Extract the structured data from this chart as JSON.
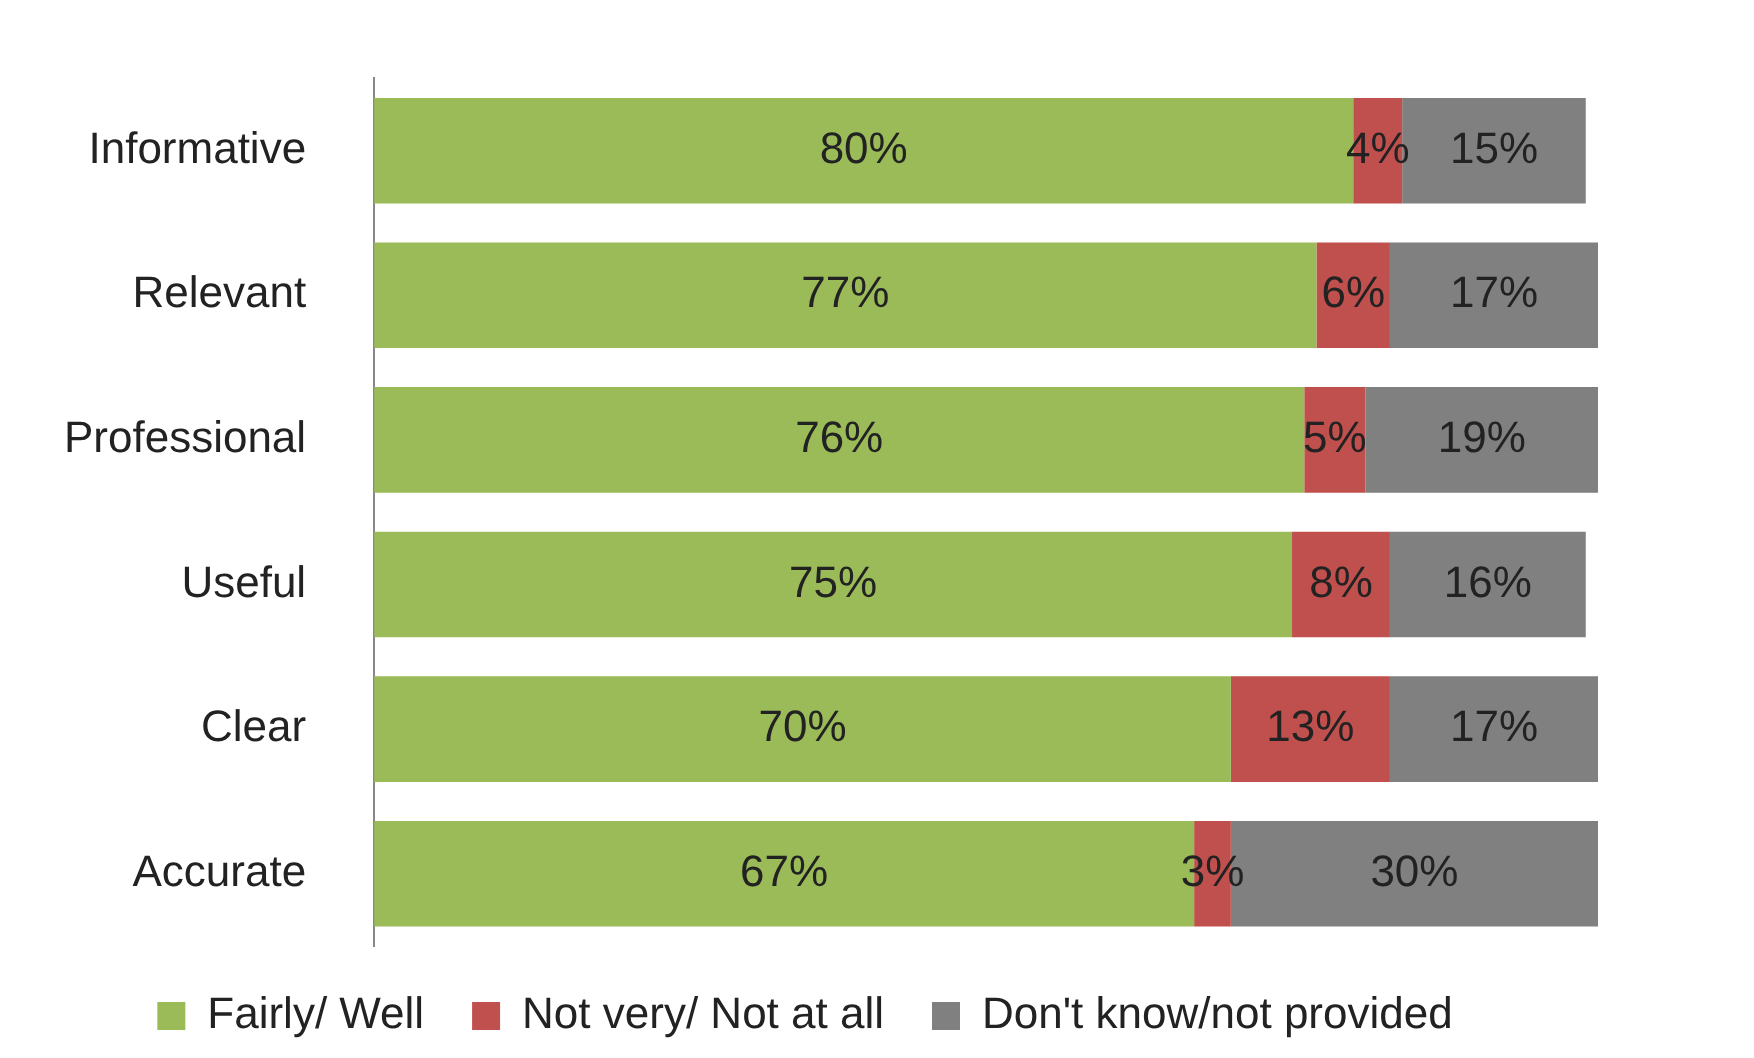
{
  "chart_data": {
    "type": "bar",
    "orientation": "horizontal",
    "stacked": true,
    "legend": "bottom",
    "categories": [
      "Informative",
      "Relevant",
      "Professional",
      "Useful",
      "Clear",
      "Accurate"
    ],
    "series": [
      {
        "name": "Fairly/ Well",
        "color": "#9bbb59",
        "values": [
          80,
          77,
          76,
          75,
          70,
          67
        ],
        "value_labels": [
          "80%",
          "77%",
          "76%",
          "75%",
          "70%",
          "67%"
        ]
      },
      {
        "name": "Not very/ Not at all",
        "color": "#c0504d",
        "values": [
          4,
          6,
          5,
          8,
          13,
          3
        ],
        "value_labels": [
          "4%",
          "6%",
          "5%",
          "8%",
          "13%",
          "3%"
        ]
      },
      {
        "name": "Don't know/not provided",
        "color": "#808080",
        "values": [
          15,
          17,
          19,
          16,
          17,
          30
        ],
        "value_labels": [
          "15%",
          "17%",
          "19%",
          "16%",
          "17%",
          "30%"
        ]
      }
    ]
  }
}
